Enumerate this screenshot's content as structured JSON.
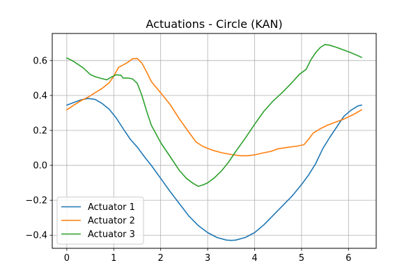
{
  "chart_data": {
    "type": "line",
    "title": "Actuations - Circle (KAN)",
    "xlabel": "",
    "ylabel": "",
    "xlim": [
      -0.31,
      6.59
    ],
    "ylim": [
      -0.475,
      0.755
    ],
    "xticks": [
      0,
      1,
      2,
      3,
      4,
      5,
      6
    ],
    "yticks": [
      -0.4,
      -0.2,
      0.0,
      0.2,
      0.4,
      0.6
    ],
    "ytick_labels": [
      "−0.4",
      "−0.2",
      "0.0",
      "0.2",
      "0.4",
      "0.6"
    ],
    "grid": true,
    "legend_position": "lower-left",
    "series": [
      {
        "name": "Actuator 1",
        "color": "#1f77b4",
        "points": [
          [
            0,
            0.345
          ],
          [
            0.15,
            0.36
          ],
          [
            0.3,
            0.375
          ],
          [
            0.45,
            0.383
          ],
          [
            0.6,
            0.378
          ],
          [
            0.75,
            0.355
          ],
          [
            0.9,
            0.322
          ],
          [
            1.05,
            0.272
          ],
          [
            1.2,
            0.21
          ],
          [
            1.35,
            0.15
          ],
          [
            1.5,
            0.105
          ],
          [
            1.65,
            0.05
          ],
          [
            1.8,
            0.0
          ],
          [
            2.0,
            -0.075
          ],
          [
            2.2,
            -0.15
          ],
          [
            2.4,
            -0.22
          ],
          [
            2.6,
            -0.29
          ],
          [
            2.8,
            -0.345
          ],
          [
            3.0,
            -0.385
          ],
          [
            3.2,
            -0.413
          ],
          [
            3.4,
            -0.428
          ],
          [
            3.5,
            -0.43
          ],
          [
            3.6,
            -0.428
          ],
          [
            3.8,
            -0.413
          ],
          [
            4.0,
            -0.385
          ],
          [
            4.2,
            -0.34
          ],
          [
            4.4,
            -0.285
          ],
          [
            4.6,
            -0.23
          ],
          [
            4.8,
            -0.175
          ],
          [
            5.0,
            -0.11
          ],
          [
            5.15,
            -0.055
          ],
          [
            5.3,
            0.01
          ],
          [
            5.45,
            0.095
          ],
          [
            5.6,
            0.16
          ],
          [
            5.75,
            0.22
          ],
          [
            5.9,
            0.28
          ],
          [
            6.05,
            0.315
          ],
          [
            6.2,
            0.34
          ],
          [
            6.28,
            0.345
          ]
        ]
      },
      {
        "name": "Actuator 2",
        "color": "#ff7f0e",
        "points": [
          [
            0,
            0.318
          ],
          [
            0.15,
            0.345
          ],
          [
            0.3,
            0.37
          ],
          [
            0.45,
            0.39
          ],
          [
            0.6,
            0.415
          ],
          [
            0.75,
            0.44
          ],
          [
            0.9,
            0.472
          ],
          [
            1.0,
            0.51
          ],
          [
            1.1,
            0.56
          ],
          [
            1.2,
            0.575
          ],
          [
            1.3,
            0.59
          ],
          [
            1.4,
            0.61
          ],
          [
            1.5,
            0.612
          ],
          [
            1.6,
            0.585
          ],
          [
            1.7,
            0.535
          ],
          [
            1.8,
            0.48
          ],
          [
            2.0,
            0.415
          ],
          [
            2.2,
            0.348
          ],
          [
            2.4,
            0.265
          ],
          [
            2.6,
            0.19
          ],
          [
            2.75,
            0.135
          ],
          [
            2.9,
            0.108
          ],
          [
            3.1,
            0.087
          ],
          [
            3.3,
            0.072
          ],
          [
            3.5,
            0.062
          ],
          [
            3.7,
            0.055
          ],
          [
            3.85,
            0.055
          ],
          [
            4.0,
            0.06
          ],
          [
            4.2,
            0.072
          ],
          [
            4.35,
            0.08
          ],
          [
            4.5,
            0.095
          ],
          [
            4.7,
            0.103
          ],
          [
            4.9,
            0.11
          ],
          [
            5.05,
            0.118
          ],
          [
            5.15,
            0.15
          ],
          [
            5.25,
            0.185
          ],
          [
            5.4,
            0.21
          ],
          [
            5.55,
            0.23
          ],
          [
            5.7,
            0.245
          ],
          [
            5.9,
            0.265
          ],
          [
            6.1,
            0.29
          ],
          [
            6.28,
            0.318
          ]
        ]
      },
      {
        "name": "Actuator 3",
        "color": "#2ca02c",
        "points": [
          [
            0,
            0.615
          ],
          [
            0.1,
            0.602
          ],
          [
            0.2,
            0.585
          ],
          [
            0.35,
            0.558
          ],
          [
            0.5,
            0.52
          ],
          [
            0.6,
            0.508
          ],
          [
            0.7,
            0.5
          ],
          [
            0.85,
            0.49
          ],
          [
            0.95,
            0.505
          ],
          [
            1.05,
            0.518
          ],
          [
            1.15,
            0.516
          ],
          [
            1.2,
            0.5
          ],
          [
            1.3,
            0.5
          ],
          [
            1.4,
            0.495
          ],
          [
            1.5,
            0.47
          ],
          [
            1.6,
            0.4
          ],
          [
            1.7,
            0.31
          ],
          [
            1.8,
            0.23
          ],
          [
            2.0,
            0.13
          ],
          [
            2.2,
            0.05
          ],
          [
            2.4,
            -0.03
          ],
          [
            2.55,
            -0.075
          ],
          [
            2.7,
            -0.105
          ],
          [
            2.8,
            -0.12
          ],
          [
            2.9,
            -0.112
          ],
          [
            3.0,
            -0.1
          ],
          [
            3.15,
            -0.07
          ],
          [
            3.3,
            -0.03
          ],
          [
            3.45,
            0.02
          ],
          [
            3.6,
            0.08
          ],
          [
            3.8,
            0.155
          ],
          [
            4.0,
            0.235
          ],
          [
            4.2,
            0.31
          ],
          [
            4.4,
            0.37
          ],
          [
            4.6,
            0.42
          ],
          [
            4.8,
            0.475
          ],
          [
            4.95,
            0.52
          ],
          [
            5.1,
            0.55
          ],
          [
            5.2,
            0.605
          ],
          [
            5.3,
            0.645
          ],
          [
            5.4,
            0.675
          ],
          [
            5.5,
            0.692
          ],
          [
            5.6,
            0.688
          ],
          [
            5.75,
            0.675
          ],
          [
            5.9,
            0.66
          ],
          [
            6.05,
            0.645
          ],
          [
            6.2,
            0.628
          ],
          [
            6.28,
            0.618
          ]
        ]
      }
    ]
  }
}
